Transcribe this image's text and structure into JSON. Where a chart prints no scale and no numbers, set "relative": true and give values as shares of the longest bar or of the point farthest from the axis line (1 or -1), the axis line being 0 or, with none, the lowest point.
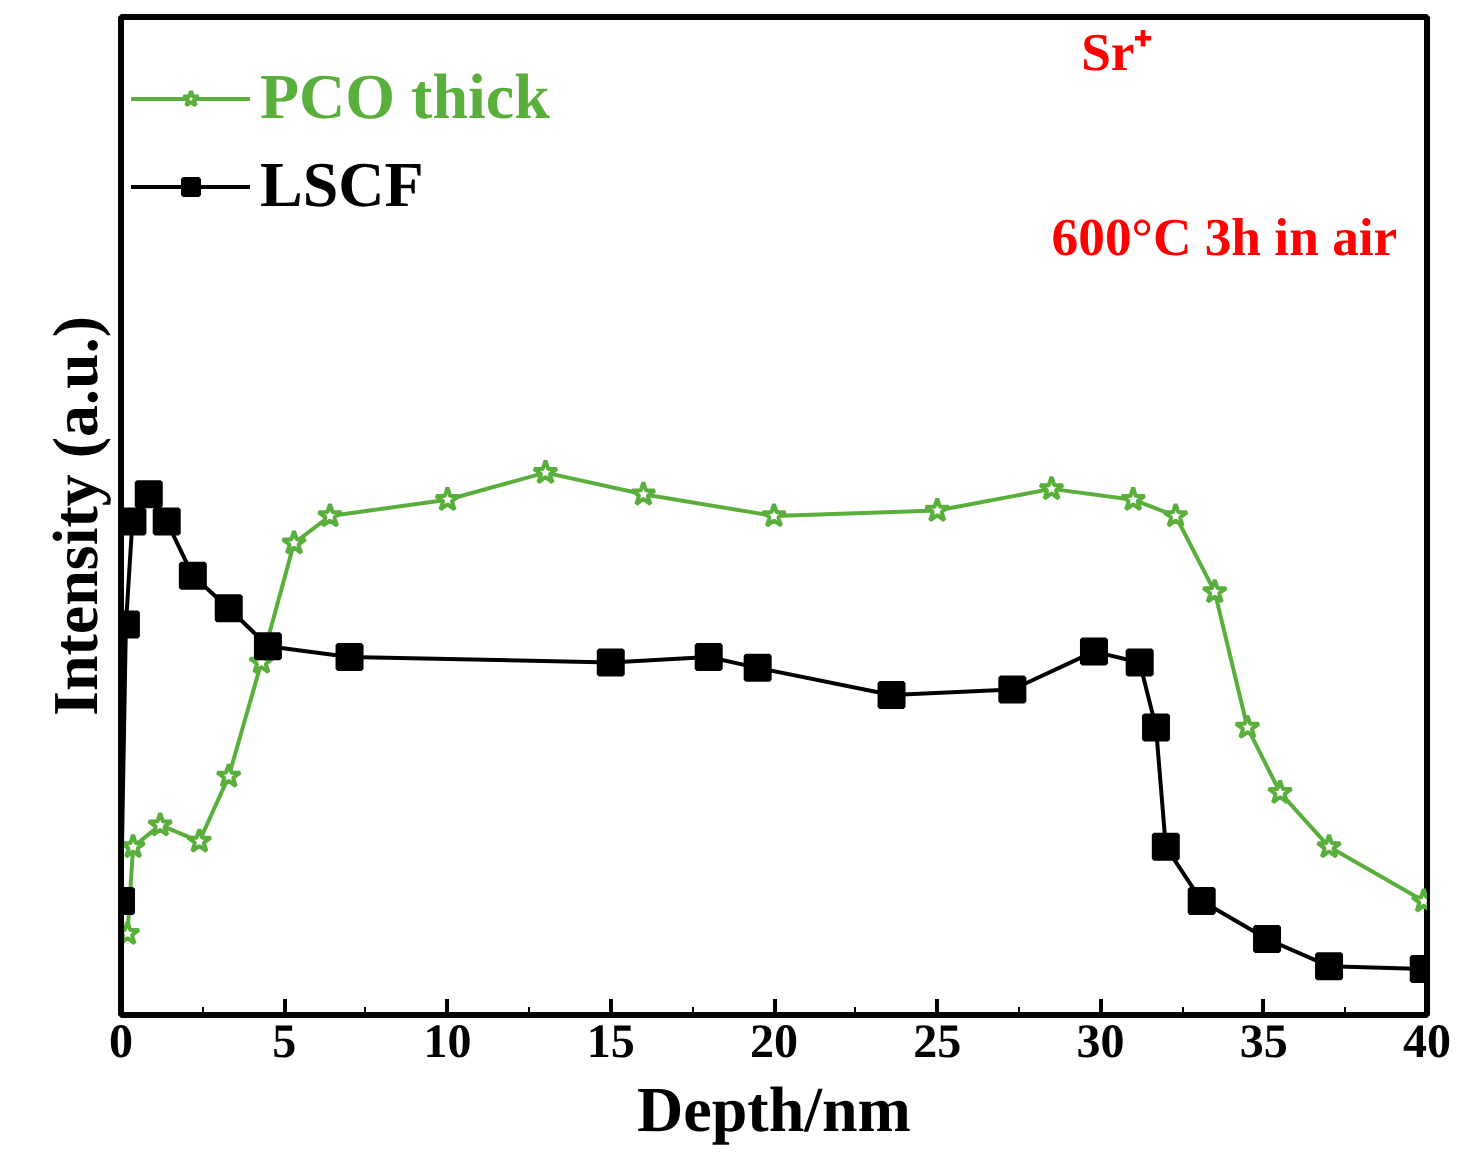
{
  "chart_data": {
    "type": "line",
    "xlabel": "Depth/nm",
    "ylabel": "Intensity (a.u.)",
    "relative": true,
    "xlim": [
      0,
      40
    ],
    "xticks": [
      0,
      5,
      10,
      15,
      20,
      25,
      30,
      35,
      40
    ],
    "grid": false,
    "legend": "top left",
    "annotations": [
      "Sr⁺",
      "600°C  3h in air"
    ],
    "series": [
      {
        "name": "PCO thick",
        "color": "#5aaf3c",
        "marker": "star",
        "x": [
          0.2,
          0.37,
          1.2,
          2.4,
          3.3,
          4.3,
          5.3,
          6.4,
          10,
          13,
          16,
          20,
          25,
          28.5,
          31,
          32.3,
          33.5,
          34.5,
          35.5,
          37,
          39.9
        ],
        "values": [
          0.15,
          0.31,
          0.35,
          0.32,
          0.44,
          0.65,
          0.87,
          0.92,
          0.95,
          1.0,
          0.96,
          0.92,
          0.93,
          0.97,
          0.95,
          0.92,
          0.78,
          0.53,
          0.41,
          0.31,
          0.21
        ]
      },
      {
        "name": "LSCF",
        "color": "#000000",
        "marker": "square",
        "x": [
          0,
          0.15,
          0.35,
          0.85,
          1.4,
          2.2,
          3.3,
          4.5,
          7,
          15,
          18,
          19.5,
          23.6,
          27.3,
          29.8,
          31.2,
          31.7,
          32,
          33.1,
          35.1,
          37,
          39.9
        ],
        "values": [
          0.21,
          0.72,
          0.91,
          0.96,
          0.91,
          0.81,
          0.75,
          0.68,
          0.66,
          0.65,
          0.66,
          0.64,
          0.59,
          0.6,
          0.67,
          0.65,
          0.53,
          0.31,
          0.21,
          0.14,
          0.09,
          0.085
        ]
      }
    ]
  }
}
